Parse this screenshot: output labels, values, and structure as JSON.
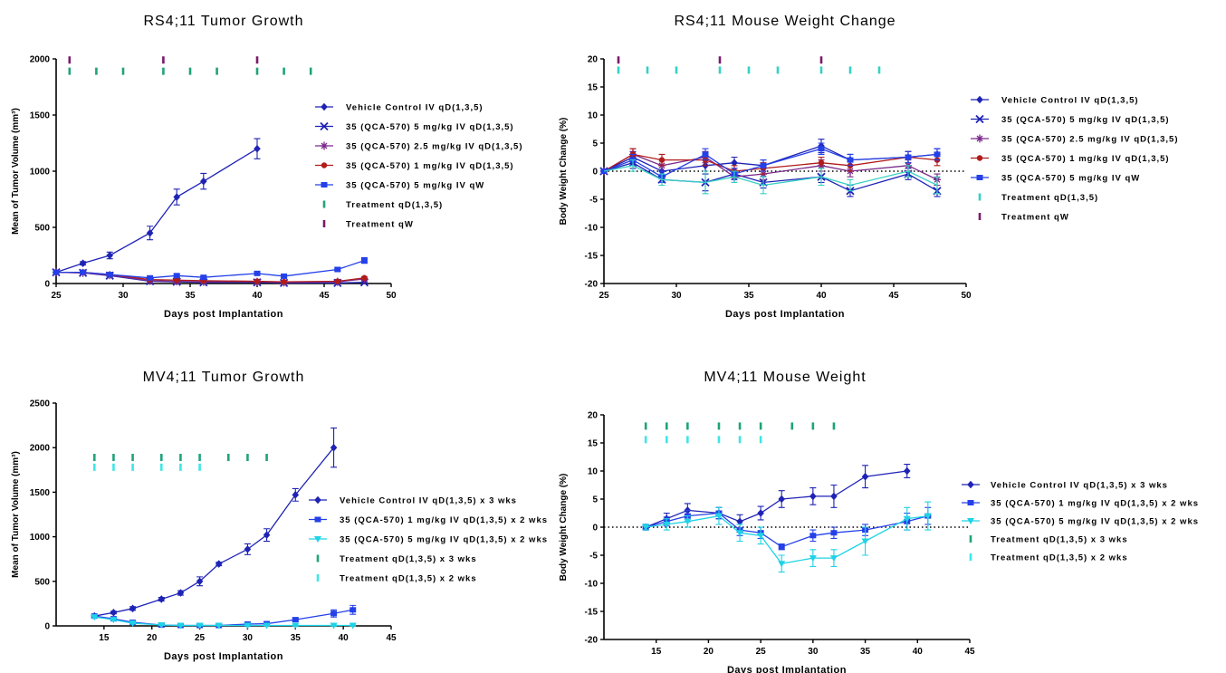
{
  "chart_data": [
    {
      "type": "line",
      "title": "RS4;11 Tumor Growth",
      "xlabel": "Days post Implantation",
      "ylabel": "Mean of Tumor Volume (mm³)",
      "xlim": [
        25,
        50
      ],
      "ylim": [
        0,
        2000
      ],
      "xticks": [
        25,
        30,
        35,
        40,
        45,
        50
      ],
      "yticks": [
        0,
        500,
        1000,
        1500,
        2000
      ],
      "legend_position": "right",
      "series": [
        {
          "name": "Vehicle Control IV qD(1,3,5)",
          "color": "#1f23b5",
          "marker": "diamond",
          "x": [
            25,
            27,
            29,
            32,
            34,
            36,
            40
          ],
          "y": [
            100,
            180,
            250,
            450,
            770,
            910,
            1200
          ],
          "err": [
            0,
            15,
            30,
            60,
            70,
            70,
            90
          ]
        },
        {
          "name": "35 (QCA-570)  5 mg/kg IV  qD(1,3,5)",
          "color": "#1f23b5",
          "marker": "x",
          "x": [
            25,
            27,
            29,
            32,
            34,
            36,
            40,
            42,
            46,
            48
          ],
          "y": [
            100,
            95,
            70,
            20,
            15,
            10,
            10,
            5,
            5,
            10
          ],
          "err": [
            0,
            10,
            8,
            5,
            5,
            5,
            5,
            5,
            5,
            5
          ]
        },
        {
          "name": "35 (QCA-570)  2.5 mg/kg IV  qD(1,3,5)",
          "color": "#7a2a8a",
          "marker": "asterisk",
          "x": [
            25,
            27,
            29,
            32,
            34,
            36,
            40,
            42,
            46,
            48
          ],
          "y": [
            100,
            95,
            75,
            25,
            20,
            15,
            15,
            10,
            15,
            40
          ],
          "err": [
            0,
            10,
            8,
            5,
            5,
            5,
            5,
            5,
            5,
            8
          ]
        },
        {
          "name": "35 (QCA-570)  1 mg/kg IV  qD(1,3,5)",
          "color": "#b01b1b",
          "marker": "circle",
          "x": [
            25,
            27,
            29,
            32,
            34,
            36,
            40,
            42,
            46,
            48
          ],
          "y": [
            100,
            100,
            80,
            35,
            30,
            25,
            20,
            15,
            20,
            50
          ],
          "err": [
            0,
            10,
            8,
            5,
            5,
            5,
            5,
            5,
            5,
            8
          ]
        },
        {
          "name": "35 (QCA-570)  5 mg/kg IV  qW",
          "color": "#2440e8",
          "marker": "square",
          "x": [
            25,
            27,
            29,
            32,
            34,
            36,
            40,
            42,
            46,
            48
          ],
          "y": [
            100,
            100,
            80,
            50,
            70,
            55,
            90,
            65,
            125,
            205
          ],
          "err": [
            0,
            10,
            10,
            10,
            12,
            10,
            12,
            10,
            12,
            25
          ]
        }
      ],
      "treatments": [
        {
          "name": "Treatment qD(1,3,5)",
          "color": "#1fa37a",
          "y": 1890,
          "days": [
            26,
            28,
            30,
            33,
            35,
            37,
            40,
            42,
            44
          ]
        },
        {
          "name": "Treatment qW",
          "color": "#7a1a6a",
          "y": 1990,
          "days": [
            26,
            33,
            40
          ]
        }
      ]
    },
    {
      "type": "line",
      "title": "RS4;11 Mouse Weight Change",
      "xlabel": "Days post Implantation",
      "ylabel": "Body Weight Change (%)",
      "xlim": [
        25,
        50
      ],
      "ylim": [
        -20,
        20
      ],
      "xticks": [
        25,
        30,
        35,
        40,
        45,
        50
      ],
      "yticks": [
        -20,
        -15,
        -10,
        -5,
        0,
        5,
        10,
        15,
        20
      ],
      "baseline": 0,
      "legend_position": "right",
      "series": [
        {
          "name": "Vehicle Control IV qD(1,3,5)",
          "color": "#1f23b5",
          "marker": "diamond",
          "x": [
            25,
            27,
            29,
            32,
            34,
            36,
            40,
            42,
            46,
            48
          ],
          "y": [
            0,
            2.5,
            0,
            1,
            1.5,
            1,
            4.5,
            2,
            2.5,
            3
          ],
          "err": [
            0,
            1,
            1,
            1,
            1,
            1,
            1.2,
            1,
            1,
            1
          ]
        },
        {
          "name": "35 (QCA-570)  5 mg/kg IV qD(1,3,5)",
          "color": "#1f23b5",
          "marker": "x",
          "x": [
            25,
            27,
            29,
            32,
            34,
            36,
            40,
            42,
            46,
            48
          ],
          "y": [
            0,
            1.5,
            -1.5,
            -2,
            -0.5,
            -2,
            -1,
            -3.5,
            -0.5,
            -3.5
          ],
          "err": [
            0,
            1,
            1,
            1.5,
            1,
            1,
            1,
            1,
            1,
            1
          ]
        },
        {
          "name": "35 (QCA-570)  2.5 mg/kg IV  qD(1,3,5)",
          "color": "#7a2a8a",
          "marker": "asterisk",
          "x": [
            25,
            27,
            29,
            32,
            34,
            36,
            40,
            42,
            46,
            48
          ],
          "y": [
            0,
            3,
            1,
            2.5,
            -1,
            -0.5,
            1,
            0,
            1,
            -1.5
          ],
          "err": [
            0,
            1,
            1,
            1,
            1,
            1,
            1,
            1,
            1,
            1
          ]
        },
        {
          "name": "35 (QCA-570)  1 mg/kg IV  qD(1,3,5)",
          "color": "#b01b1b",
          "marker": "circle",
          "x": [
            25,
            27,
            29,
            32,
            34,
            36,
            40,
            42,
            46,
            48
          ],
          "y": [
            0,
            3,
            2,
            2,
            0,
            0.5,
            1.5,
            1,
            2.5,
            2
          ],
          "err": [
            0,
            1,
            1,
            1,
            1,
            1,
            1,
            1,
            1,
            1
          ]
        },
        {
          "name": "35 (QCA-570) 5 mg/kg IV qW",
          "color": "#2440e8",
          "marker": "square",
          "x": [
            25,
            27,
            29,
            32,
            34,
            36,
            40,
            42,
            46,
            48
          ],
          "y": [
            0,
            2,
            -1,
            3,
            -0.5,
            1,
            4,
            2,
            2.5,
            3
          ],
          "err": [
            0,
            1,
            1,
            1,
            1,
            1,
            1,
            1,
            1,
            1
          ]
        },
        {
          "name": "",
          "color": "#36d1c4",
          "marker": "none",
          "x": [
            25,
            27,
            29,
            32,
            34,
            36,
            40,
            42,
            46,
            48
          ],
          "y": [
            0,
            1,
            -1.5,
            -2,
            -1,
            -2.5,
            -1,
            -2.5,
            0,
            -2.5
          ],
          "err": [
            0,
            1,
            1,
            2,
            1,
            1.5,
            1.5,
            1,
            1,
            1.5
          ]
        }
      ],
      "treatments": [
        {
          "name": "Treatment qD(1,3,5)",
          "color": "#36d1c4",
          "y": 18,
          "days": [
            26,
            28,
            30,
            33,
            35,
            37,
            40,
            42,
            44
          ]
        },
        {
          "name": "Treatment qW",
          "color": "#7a1a6a",
          "y": 19.8,
          "days": [
            26,
            33,
            40
          ]
        }
      ]
    },
    {
      "type": "line",
      "title": "MV4;11 Tumor Growth",
      "xlabel": "Days post Implantation",
      "ylabel": "Mean of Tumor Volume (mm³)",
      "xlim": [
        10,
        45
      ],
      "ylim": [
        0,
        2500
      ],
      "xticks": [
        15,
        20,
        25,
        30,
        35,
        40,
        45
      ],
      "yticks": [
        0,
        500,
        1000,
        1500,
        2000,
        2500
      ],
      "legend_position": "right",
      "series": [
        {
          "name": "Vehicle Control IV qD(1,3,5) x 3 wks",
          "color": "#1f23b5",
          "marker": "diamond",
          "x": [
            14,
            16,
            18,
            21,
            23,
            25,
            27,
            30,
            32,
            35,
            39
          ],
          "y": [
            110,
            150,
            195,
            300,
            370,
            500,
            695,
            860,
            1020,
            1470,
            2000
          ],
          "err": [
            15,
            15,
            20,
            20,
            25,
            50,
            20,
            60,
            70,
            70,
            220
          ]
        },
        {
          "name": "35 (QCA-570)   1 mg/kg IV qD(1,3,5) x 2 wks",
          "color": "#2440e8",
          "marker": "square",
          "x": [
            14,
            16,
            18,
            21,
            23,
            25,
            27,
            30,
            32,
            35,
            39,
            41
          ],
          "y": [
            110,
            80,
            40,
            10,
            5,
            5,
            5,
            20,
            25,
            70,
            140,
            180
          ],
          "err": [
            10,
            10,
            8,
            5,
            5,
            5,
            5,
            10,
            10,
            15,
            40,
            50
          ]
        },
        {
          "name": "35 (QCA-570)   5 mg/kg IV qD(1,3,5) x 2 wks",
          "color": "#1fd3e6",
          "marker": "triangle-down",
          "x": [
            14,
            16,
            18,
            21,
            23,
            25,
            27,
            30,
            32,
            35,
            39,
            41
          ],
          "y": [
            100,
            70,
            30,
            10,
            5,
            5,
            5,
            5,
            5,
            5,
            5,
            5
          ],
          "err": [
            10,
            10,
            8,
            5,
            5,
            5,
            5,
            5,
            5,
            5,
            5,
            5
          ]
        }
      ],
      "treatments": [
        {
          "name": "Treatment qD(1,3,5) x 3 wks",
          "color": "#1fa37a",
          "y": 1890,
          "days": [
            14,
            16,
            18,
            21,
            23,
            25,
            28,
            30,
            32
          ]
        },
        {
          "name": "Treatment qD(1,3,5)  x 2 wks",
          "color": "#3fe6e6",
          "y": 1780,
          "days": [
            14,
            16,
            18,
            21,
            23,
            25
          ]
        }
      ]
    },
    {
      "type": "line",
      "title": "MV4;11 Mouse Weight",
      "xlabel": "Days post Implantation",
      "ylabel": "Body Weight Change (%)",
      "xlim": [
        10,
        45
      ],
      "ylim": [
        -20,
        20
      ],
      "xticks": [
        15,
        20,
        25,
        30,
        35,
        40,
        45
      ],
      "yticks": [
        -20,
        -15,
        -10,
        -5,
        0,
        5,
        10,
        15,
        20
      ],
      "baseline": 0,
      "legend_position": "right",
      "series": [
        {
          "name": "Vehicle Control IV qD(1,3,5) x 3 wks",
          "color": "#1f23b5",
          "marker": "diamond",
          "x": [
            14,
            16,
            18,
            21,
            23,
            25,
            27,
            30,
            32,
            35,
            39
          ],
          "y": [
            0,
            1.5,
            3,
            2.5,
            1,
            2.5,
            5,
            5.5,
            5.5,
            9,
            10
          ],
          "err": [
            0.5,
            1,
            1.2,
            1,
            1.2,
            1.2,
            1.5,
            1.5,
            2,
            2,
            1.2
          ]
        },
        {
          "name": "35 (QCA-570)   1 mg/kg IV qD(1,3,5) x 2 wks",
          "color": "#2440e8",
          "marker": "square",
          "x": [
            14,
            16,
            18,
            21,
            23,
            25,
            27,
            30,
            32,
            35,
            39,
            41
          ],
          "y": [
            0,
            1,
            2,
            2.5,
            -0.5,
            -1,
            -3.5,
            -1.5,
            -1,
            -0.5,
            1,
            2
          ],
          "err": [
            0.5,
            0.8,
            1,
            1,
            1,
            1,
            0.5,
            1,
            1,
            1,
            1.5,
            1.5
          ]
        },
        {
          "name": "35 (QCA-570)   5 mg/kg IV qD(1,3,5) x 2 wks",
          "color": "#1fd3e6",
          "marker": "triangle-down",
          "x": [
            14,
            16,
            18,
            21,
            23,
            25,
            27,
            30,
            32,
            35,
            39,
            41
          ],
          "y": [
            0,
            0.5,
            1,
            2,
            -1,
            -1.5,
            -6.5,
            -5.5,
            -5.5,
            -2.5,
            1.5,
            2
          ],
          "err": [
            0.5,
            1,
            1,
            1.5,
            1.5,
            1.5,
            1.5,
            1.5,
            1.5,
            2.5,
            2,
            2.5
          ]
        }
      ],
      "treatments": [
        {
          "name": "Treatment qD(1,3,5) x 3 wks",
          "color": "#1fa37a",
          "y": 18,
          "days": [
            14,
            16,
            18,
            21,
            23,
            25,
            28,
            30,
            32
          ]
        },
        {
          "name": "Treatment qD(1,3,5)  x 2 wks",
          "color": "#3fe6e6",
          "y": 15.6,
          "days": [
            14,
            16,
            18,
            21,
            23,
            25
          ]
        }
      ]
    }
  ]
}
